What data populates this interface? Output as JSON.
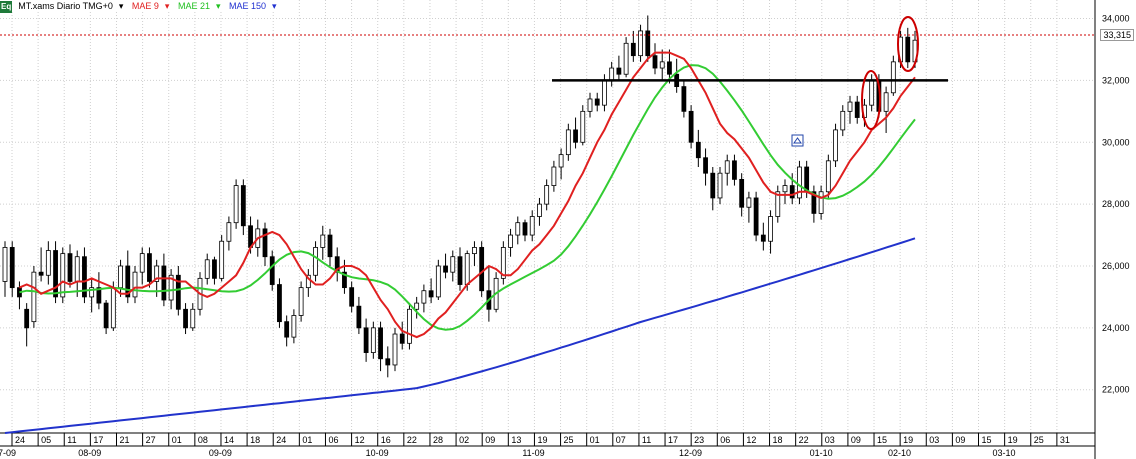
{
  "legend": {
    "symbol": "MT.xams Diario TMG+0",
    "ma9": "MAE 9",
    "ma21": "MAE 21",
    "ma150": "MAE 150",
    "icon": "Eq"
  },
  "last_price_label": "33,315",
  "colors": {
    "up": "#ffffff",
    "down": "#000000",
    "ma9": "#e02020",
    "ma21": "#33cc33",
    "ma150": "#2233cc",
    "grid": "#cfcfcf",
    "price_line": "#cc0000",
    "annotation": "#cc0000"
  },
  "chart_data": {
    "type": "candlestick",
    "y_ticks": [
      "34,000",
      "32,000",
      "30,000",
      "28,000",
      "26,000",
      "24,000",
      "22,000"
    ],
    "y_tick_values": [
      34,
      32,
      30,
      28,
      26,
      24,
      22
    ],
    "ylim": [
      20.6,
      34.6
    ],
    "day_ticks": [
      "24",
      "05",
      "11",
      "17",
      "21",
      "27",
      "01",
      "08",
      "14",
      "18",
      "24",
      "01",
      "06",
      "12",
      "16",
      "22",
      "28",
      "02",
      "09",
      "13",
      "19",
      "25",
      "01",
      "07",
      "11",
      "17",
      "23",
      "06",
      "12",
      "18",
      "22",
      "03",
      "09",
      "15",
      "19",
      "03",
      "09",
      "15",
      "19",
      "25",
      "31"
    ],
    "month_labels": [
      "7-09",
      "08-09",
      "09-09",
      "10-09",
      "11-09",
      "12-09",
      "01-10",
      "02-10",
      "03-10"
    ],
    "candles": [
      [
        25.5,
        26.8,
        25.0,
        26.6
      ],
      [
        26.6,
        26.8,
        25.0,
        25.3
      ],
      [
        25.3,
        25.5,
        24.6,
        25.0
      ],
      [
        24.6,
        24.8,
        23.4,
        24.0
      ],
      [
        24.2,
        26.0,
        24.0,
        25.8
      ],
      [
        25.8,
        26.6,
        25.5,
        25.7
      ],
      [
        25.7,
        26.8,
        25.4,
        26.5
      ],
      [
        26.5,
        26.8,
        24.8,
        25.0
      ],
      [
        25.0,
        26.6,
        24.8,
        26.4
      ],
      [
        26.4,
        26.7,
        25.3,
        25.5
      ],
      [
        25.5,
        26.5,
        25.0,
        26.3
      ],
      [
        26.3,
        26.6,
        24.8,
        25.0
      ],
      [
        25.0,
        25.6,
        24.5,
        25.3
      ],
      [
        25.3,
        25.8,
        24.6,
        24.8
      ],
      [
        24.8,
        24.9,
        23.8,
        24.0
      ],
      [
        24.0,
        25.5,
        23.9,
        25.3
      ],
      [
        25.3,
        26.2,
        25.0,
        26.0
      ],
      [
        26.0,
        26.5,
        24.8,
        25.0
      ],
      [
        25.0,
        26.0,
        24.8,
        25.8
      ],
      [
        25.8,
        26.6,
        25.4,
        26.4
      ],
      [
        26.4,
        26.6,
        25.3,
        25.5
      ],
      [
        25.5,
        26.2,
        25.0,
        26.0
      ],
      [
        26.0,
        26.4,
        24.7,
        24.9
      ],
      [
        24.9,
        25.9,
        24.6,
        25.7
      ],
      [
        25.7,
        26.0,
        24.4,
        24.6
      ],
      [
        24.6,
        24.8,
        23.8,
        24.0
      ],
      [
        24.0,
        24.8,
        23.9,
        24.6
      ],
      [
        24.6,
        25.8,
        24.4,
        25.6
      ],
      [
        25.6,
        26.4,
        25.4,
        26.2
      ],
      [
        26.2,
        26.3,
        25.4,
        25.6
      ],
      [
        25.6,
        27.0,
        25.5,
        26.8
      ],
      [
        26.8,
        27.6,
        26.5,
        27.4
      ],
      [
        27.4,
        28.8,
        27.2,
        28.6
      ],
      [
        28.6,
        28.8,
        27.0,
        27.3
      ],
      [
        27.3,
        27.6,
        26.4,
        26.6
      ],
      [
        26.6,
        27.5,
        26.3,
        27.2
      ],
      [
        27.2,
        27.4,
        26.0,
        26.3
      ],
      [
        26.3,
        26.5,
        25.2,
        25.4
      ],
      [
        25.4,
        25.6,
        24.0,
        24.2
      ],
      [
        24.2,
        24.4,
        23.4,
        23.7
      ],
      [
        23.7,
        24.6,
        23.5,
        24.4
      ],
      [
        24.4,
        25.5,
        24.2,
        25.3
      ],
      [
        25.3,
        25.9,
        25.0,
        25.7
      ],
      [
        25.7,
        26.8,
        25.5,
        26.6
      ],
      [
        26.6,
        27.3,
        26.2,
        27.0
      ],
      [
        27.0,
        27.2,
        26.0,
        26.3
      ],
      [
        26.3,
        26.6,
        25.5,
        25.8
      ],
      [
        25.8,
        26.2,
        25.1,
        25.3
      ],
      [
        25.3,
        25.5,
        24.5,
        24.7
      ],
      [
        24.7,
        25.0,
        23.8,
        24.0
      ],
      [
        24.0,
        24.3,
        22.9,
        23.2
      ],
      [
        23.2,
        24.2,
        23.0,
        24.0
      ],
      [
        24.0,
        24.2,
        22.6,
        23.0
      ],
      [
        23.0,
        23.4,
        22.4,
        22.8
      ],
      [
        22.8,
        24.0,
        22.6,
        23.8
      ],
      [
        23.8,
        24.2,
        23.3,
        23.5
      ],
      [
        23.5,
        24.8,
        23.3,
        24.6
      ],
      [
        24.6,
        25.0,
        24.3,
        24.8
      ],
      [
        24.8,
        25.4,
        24.5,
        25.2
      ],
      [
        25.2,
        25.6,
        24.8,
        25.0
      ],
      [
        25.0,
        26.2,
        24.9,
        26.0
      ],
      [
        26.0,
        26.4,
        25.6,
        25.8
      ],
      [
        25.8,
        26.5,
        25.5,
        26.3
      ],
      [
        26.3,
        26.6,
        25.2,
        25.4
      ],
      [
        25.4,
        26.5,
        25.2,
        26.4
      ],
      [
        26.4,
        26.8,
        26.0,
        26.6
      ],
      [
        26.6,
        26.8,
        25.0,
        25.2
      ],
      [
        25.2,
        26.0,
        24.2,
        24.6
      ],
      [
        24.6,
        25.8,
        24.5,
        25.6
      ],
      [
        25.6,
        26.8,
        25.4,
        26.6
      ],
      [
        26.6,
        27.2,
        26.3,
        27.0
      ],
      [
        27.0,
        27.6,
        26.7,
        27.4
      ],
      [
        27.4,
        27.5,
        26.8,
        27.0
      ],
      [
        27.0,
        27.8,
        26.8,
        27.6
      ],
      [
        27.6,
        28.2,
        27.3,
        28.0
      ],
      [
        28.0,
        28.8,
        27.8,
        28.6
      ],
      [
        28.6,
        29.4,
        28.4,
        29.2
      ],
      [
        29.2,
        29.8,
        28.8,
        29.6
      ],
      [
        29.6,
        30.6,
        29.4,
        30.4
      ],
      [
        30.4,
        30.8,
        29.8,
        30.0
      ],
      [
        30.0,
        31.2,
        29.9,
        31.0
      ],
      [
        31.0,
        31.6,
        30.8,
        31.4
      ],
      [
        31.4,
        31.6,
        31.0,
        31.2
      ],
      [
        31.2,
        32.2,
        31.0,
        32.0
      ],
      [
        32.0,
        32.6,
        31.8,
        32.4
      ],
      [
        32.4,
        32.8,
        32.0,
        32.2
      ],
      [
        32.2,
        33.4,
        32.1,
        33.2
      ],
      [
        33.2,
        33.6,
        32.6,
        32.8
      ],
      [
        32.8,
        33.8,
        32.6,
        33.6
      ],
      [
        33.6,
        34.1,
        32.6,
        32.8
      ],
      [
        32.8,
        33.2,
        32.2,
        32.4
      ],
      [
        32.4,
        33.0,
        32.0,
        32.6
      ],
      [
        32.6,
        33.0,
        31.9,
        32.2
      ],
      [
        32.2,
        32.7,
        31.6,
        31.8
      ],
      [
        31.8,
        32.0,
        30.8,
        31.0
      ],
      [
        31.0,
        31.2,
        29.8,
        30.0
      ],
      [
        30.0,
        30.4,
        29.2,
        29.5
      ],
      [
        29.5,
        29.8,
        28.6,
        29.0
      ],
      [
        29.0,
        29.2,
        27.8,
        28.2
      ],
      [
        28.2,
        29.2,
        28.0,
        29.0
      ],
      [
        29.0,
        29.6,
        28.6,
        29.4
      ],
      [
        29.4,
        29.6,
        28.6,
        28.8
      ],
      [
        28.8,
        29.0,
        27.6,
        27.9
      ],
      [
        27.9,
        28.4,
        27.4,
        28.2
      ],
      [
        28.2,
        28.4,
        26.8,
        27.0
      ],
      [
        27.0,
        27.4,
        26.5,
        26.8
      ],
      [
        26.8,
        27.8,
        26.4,
        27.6
      ],
      [
        27.6,
        28.6,
        27.4,
        28.4
      ],
      [
        28.4,
        28.8,
        28.0,
        28.6
      ],
      [
        28.6,
        29.0,
        28.0,
        28.2
      ],
      [
        28.2,
        29.4,
        28.0,
        29.2
      ],
      [
        29.2,
        29.4,
        28.2,
        28.4
      ],
      [
        28.4,
        28.6,
        27.4,
        27.7
      ],
      [
        27.7,
        28.6,
        27.5,
        28.4
      ],
      [
        28.4,
        29.6,
        28.2,
        29.4
      ],
      [
        29.4,
        30.6,
        29.2,
        30.4
      ],
      [
        30.4,
        31.2,
        30.2,
        31.0
      ],
      [
        31.0,
        31.5,
        30.6,
        31.3
      ],
      [
        31.3,
        31.5,
        30.6,
        30.8
      ],
      [
        30.8,
        31.4,
        30.5,
        31.2
      ],
      [
        31.2,
        32.2,
        31.0,
        32.0
      ],
      [
        32.0,
        32.2,
        30.8,
        31.0
      ],
      [
        31.0,
        31.8,
        30.3,
        31.6
      ],
      [
        31.6,
        32.8,
        31.5,
        32.6
      ],
      [
        32.6,
        33.6,
        32.4,
        33.4
      ],
      [
        33.4,
        33.7,
        32.4,
        32.6
      ],
      [
        32.6,
        33.6,
        32.4,
        33.3
      ]
    ],
    "ma9": [
      25.3,
      25.4,
      25.3,
      25.1,
      25.2,
      25.3,
      25.5,
      25.4,
      25.5,
      25.5,
      25.6,
      25.5,
      25.4,
      25.3,
      25.1,
      25.1,
      25.3,
      25.3,
      25.4,
      25.6,
      25.6,
      25.6,
      25.5,
      25.5,
      25.3,
      25.1,
      25.0,
      25.1,
      25.3,
      25.5,
      25.7,
      26.1,
      26.6,
      26.9,
      27.0,
      27.1,
      27.0,
      26.7,
      26.3,
      25.9,
      25.6,
      25.4,
      25.4,
      25.6,
      25.9,
      26.0,
      26.0,
      25.9,
      25.7,
      25.3,
      24.9,
      24.6,
      24.2,
      23.9,
      23.8,
      23.7,
      23.8,
      24.0,
      24.3,
      24.5,
      24.8,
      25.1,
      25.4,
      25.6,
      25.8,
      26.0,
      25.9,
      25.7,
      25.7,
      25.9,
      26.2,
      26.5,
      26.7,
      27.0,
      27.3,
      27.7,
      28.1,
      28.6,
      29.0,
      29.5,
      30.0,
      30.4,
      30.9,
      31.3,
      31.7,
      32.1,
      32.4,
      32.7,
      32.9,
      32.9,
      32.9,
      32.8,
      32.7,
      32.4,
      32.0,
      31.6,
      31.1,
      30.6,
      30.3,
      30.1,
      29.8,
      29.5,
      29.1,
      28.7,
      28.4,
      28.3,
      28.3,
      28.3,
      28.4,
      28.4,
      28.3,
      28.2,
      28.3,
      28.6,
      29.0,
      29.4,
      29.7,
      30.0,
      30.4,
      30.6,
      30.8,
      31.1,
      31.5,
      31.8,
      32.1
    ]
  }
}
